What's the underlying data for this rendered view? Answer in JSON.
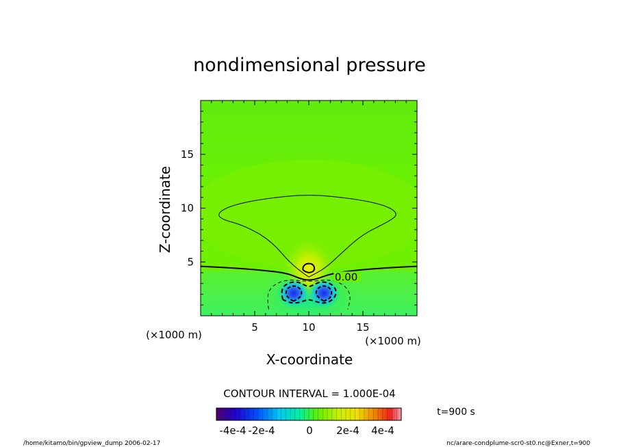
{
  "chart_data": {
    "type": "heatmap",
    "title": "nondimensional pressure",
    "xlabel": "X-coordinate",
    "ylabel": "Z-coordinate",
    "x_unit": "(×1000 m)",
    "y_unit": "(×1000 m)",
    "xlim": [
      0,
      20
    ],
    "ylim": [
      0,
      20
    ],
    "x_ticks": [
      "5",
      "10",
      "15"
    ],
    "y_ticks": [
      "5",
      "10",
      "15"
    ],
    "x_tick_values": [
      5,
      10,
      15
    ],
    "y_tick_values": [
      5,
      10,
      15
    ],
    "contour_label": "0.00",
    "contour_interval_text": "CONTOUR INTERVAL = 1.000E-04",
    "time_text": "t=900 s",
    "colorbar": {
      "range": [
        -0.0005,
        0.0005
      ],
      "tick_labels": [
        "-4e-4",
        "-2e-4",
        "0",
        "2e-4",
        "4e-4"
      ],
      "tick_values": [
        -0.0004,
        -0.0002,
        0,
        0.0002,
        0.0004
      ]
    },
    "features": [
      {
        "kind": "high",
        "x": 10,
        "z": 4.3,
        "value": 0.00018
      },
      {
        "kind": "low",
        "x": 8.6,
        "z": 2.1,
        "value": -0.00033
      },
      {
        "kind": "low",
        "x": 11.4,
        "z": 2.1,
        "value": -0.00033
      }
    ]
  },
  "footer": {
    "left": "/home/kitamo/bin/gpview_dump  2006-02-17",
    "right": "nc/arare-condplume-scr0-st0.nc@Exner,t=900"
  },
  "colors": {
    "background_field": "#6ef000",
    "positive_peak": "#ffe800",
    "negative_peak": "#1e2cf0"
  }
}
